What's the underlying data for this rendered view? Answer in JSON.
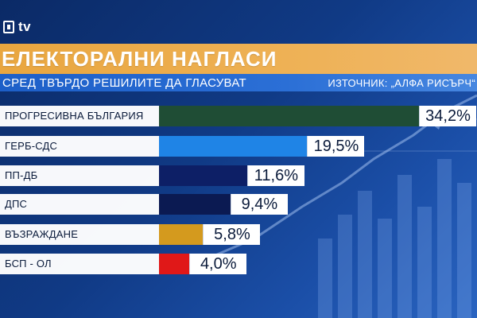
{
  "logo": {
    "text": "tv"
  },
  "header": {
    "title": "ЕЛЕКТОРАЛНИ НАГЛАСИ",
    "subtitle": "СРЕД ТВЪРДО РЕШИЛИТЕ ДА ГЛАСУВАТ",
    "source": "ИЗТОЧНИК: „АЛФА РИСЪРЧ“"
  },
  "colors": {
    "title_bar": "#eeb155",
    "sub_bar": "#2b6fd6",
    "bar_colors": [
      "#1f4d35",
      "#1f84e6",
      "#0d1f66",
      "#0b1a52",
      "#d49a1e",
      "#e01818"
    ]
  },
  "chart_data": {
    "type": "bar",
    "orientation": "horizontal",
    "title": "ЕЛЕКТОРАЛНИ НАГЛАСИ",
    "subtitle": "СРЕД ТВЪРДО РЕШИЛИТЕ ДА ГЛАСУВАТ",
    "categories": [
      "ПРОГРЕСИВНА БЪЛГАРИЯ",
      "ГЕРБ-СДС",
      "ПП-ДБ",
      "ДПС",
      "ВЪЗРАЖДАНЕ",
      "БСП - ОЛ"
    ],
    "values": [
      34.2,
      19.5,
      11.6,
      9.4,
      5.8,
      4.0
    ],
    "value_labels": [
      "34,2%",
      "19,5%",
      "11,6%",
      "9,4%",
      "5,8%",
      "4,0%"
    ],
    "xlim": [
      0,
      34.2
    ],
    "legend": "none",
    "grid": false
  }
}
